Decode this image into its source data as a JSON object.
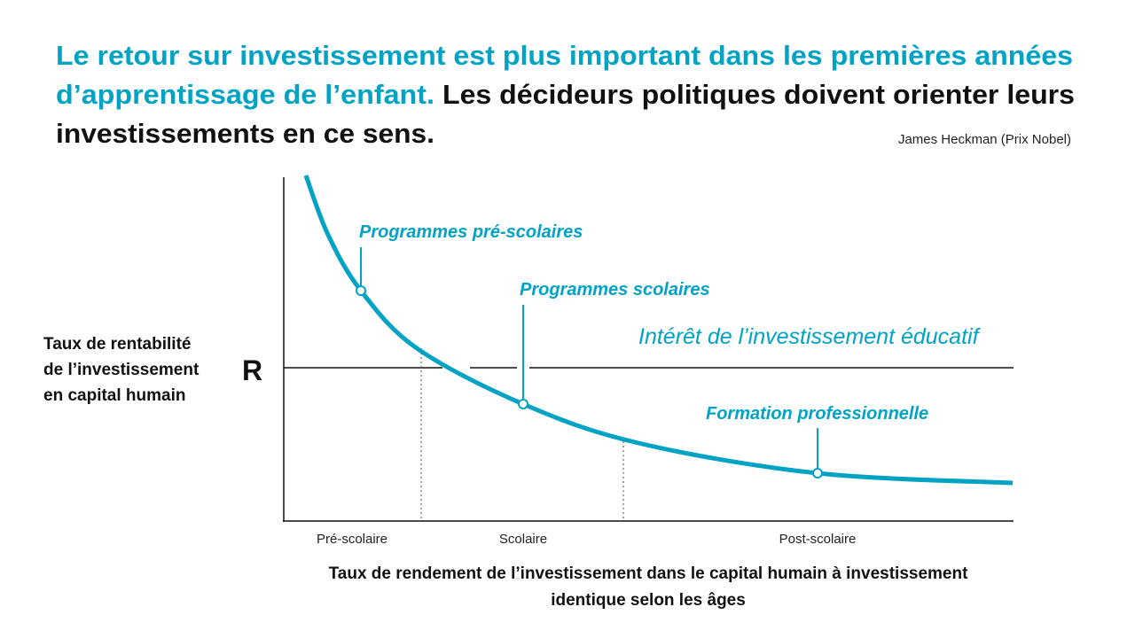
{
  "header": {
    "highlight": [
      "Le retour sur investissement est plus important dans les premières années",
      "d’apprentissage de l’enfant."
    ],
    "statement": [
      "Les décideurs politiques doivent orienter leurs",
      "investissements en ce sens."
    ],
    "attribution": "James Heckman (Prix Nobel)"
  },
  "diagram": {
    "y_label": [
      "Taux de rentabilité",
      "de l’investissement",
      "en capital humain"
    ],
    "r_label": "R",
    "annotations": [
      "Programmes pré-scolaires",
      "Programmes scolaires",
      "Formation professionnelle"
    ],
    "curve_label": "Intérêt de l’investissement éducatif",
    "stages": [
      "Pré-scolaire",
      "Scolaire",
      "Post-scolaire"
    ],
    "x_label": [
      "Taux de rendement de l’investissement dans le capital humain à investissement",
      "identique selon les âges"
    ]
  }
}
